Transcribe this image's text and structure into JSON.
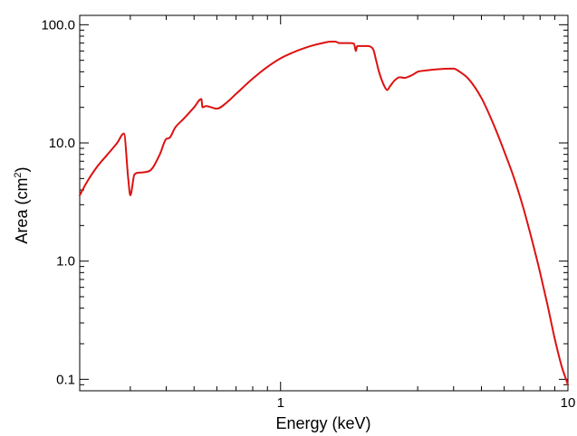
{
  "chart_data": {
    "type": "line",
    "title": "",
    "xlabel": "Energy (keV)",
    "ylabel": {
      "prefix": "Area (cm",
      "superscript": "2",
      "suffix": ")"
    },
    "x_scale": "log",
    "y_scale": "log",
    "xlim": [
      0.2,
      10
    ],
    "ylim": [
      0.08,
      120
    ],
    "x_ticks": [
      {
        "value": 1,
        "label": "1"
      },
      {
        "value": 10,
        "label": "10"
      }
    ],
    "y_ticks": [
      {
        "value": 0.1,
        "label": "0.1"
      },
      {
        "value": 1,
        "label": "1.0"
      },
      {
        "value": 10,
        "label": "10.0"
      },
      {
        "value": 100,
        "label": "100.0"
      }
    ],
    "grid": false,
    "line_color": "#dd1111",
    "series": [
      {
        "x": [
          0.2,
          0.21,
          0.23,
          0.25,
          0.27,
          0.285,
          0.295,
          0.3,
          0.31,
          0.32,
          0.35,
          0.38,
          0.4,
          0.41,
          0.43,
          0.46,
          0.5,
          0.53,
          0.535,
          0.55,
          0.6,
          0.65,
          0.7,
          0.8,
          0.9,
          1.0,
          1.1,
          1.2,
          1.3,
          1.4,
          1.5,
          1.55,
          1.6,
          1.7,
          1.75,
          1.8,
          1.83,
          1.84,
          1.85,
          1.9,
          2.0,
          2.1,
          2.15,
          2.2,
          2.3,
          2.35,
          2.4,
          2.5,
          2.6,
          2.7,
          2.8,
          2.9,
          3.0,
          3.2,
          3.5,
          4.0,
          4.2,
          4.5,
          5.0,
          5.5,
          6.0,
          6.5,
          7.0,
          7.5,
          8.0,
          8.5,
          9.0,
          9.5,
          10.0
        ],
        "y": [
          3.6,
          4.5,
          6.3,
          8.0,
          10.0,
          12.0,
          5.0,
          3.6,
          5.4,
          5.6,
          5.8,
          8.0,
          10.8,
          11.0,
          13.5,
          16.0,
          20.0,
          23.5,
          20.0,
          20.5,
          19.5,
          22.0,
          26.0,
          35.0,
          44.0,
          52.0,
          58.0,
          63.0,
          67.0,
          70.0,
          72.0,
          72.0,
          70.0,
          70.0,
          70.0,
          69.0,
          60.0,
          64.0,
          66.0,
          66.0,
          66.0,
          62.0,
          50.0,
          40.0,
          30.0,
          28.0,
          30.0,
          34.0,
          36.0,
          35.5,
          36.5,
          38.0,
          40.0,
          41.0,
          42.0,
          42.5,
          40.0,
          35.0,
          24.0,
          14.5,
          8.5,
          5.0,
          2.8,
          1.5,
          0.8,
          0.42,
          0.22,
          0.13,
          0.09
        ]
      }
    ]
  }
}
